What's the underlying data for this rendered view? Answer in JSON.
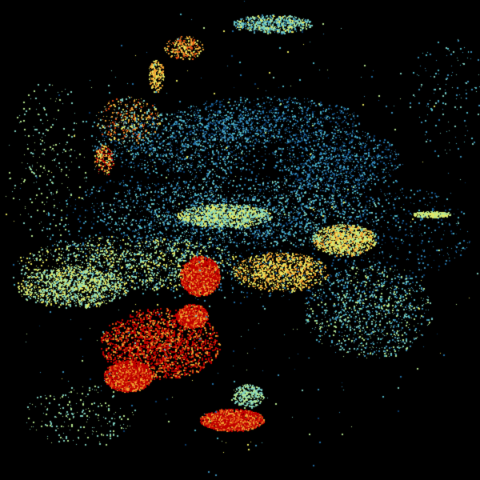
{
  "image": {
    "background_color": "#000000",
    "palette": {
      "dark_blue": "#0b3d6e",
      "blue": "#1f6fa8",
      "steel_blue": "#3b8fb8",
      "cyan": "#4fb8c8",
      "aqua": "#7fd0c0",
      "light_green": "#b8e890",
      "yellow": "#e8e860",
      "orange": "#f0a030",
      "red_orange": "#e04a10",
      "red": "#c00000"
    }
  }
}
